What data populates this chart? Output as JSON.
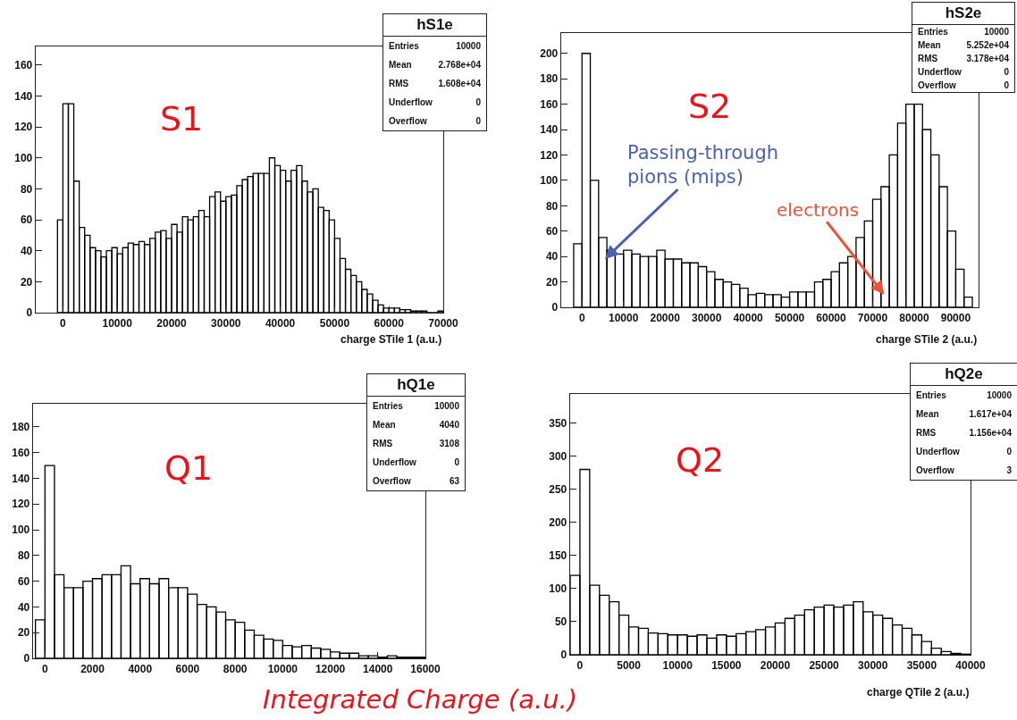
{
  "chart_data": [
    {
      "type": "histogram",
      "xlabel": "charge STile 1 (a.u.)",
      "color": "#000000",
      "xlim": [
        -5000,
        70000
      ],
      "xticks": [
        0,
        10000,
        20000,
        30000,
        40000,
        50000,
        60000,
        70000
      ],
      "ylim": [
        0,
        172
      ],
      "yticks": [
        0,
        20,
        40,
        60,
        80,
        100,
        120,
        140,
        160
      ],
      "grid": false,
      "legend": false,
      "bins": [
        -1000,
        0,
        1000,
        2000,
        3000,
        4000,
        5000,
        6000,
        7000,
        8000,
        9000,
        10000,
        11000,
        12000,
        13000,
        14000,
        15000,
        16000,
        17000,
        18000,
        19000,
        20000,
        21000,
        22000,
        23000,
        24000,
        25000,
        26000,
        27000,
        28000,
        29000,
        30000,
        31000,
        32000,
        33000,
        34000,
        35000,
        36000,
        37000,
        38000,
        39000,
        40000,
        41000,
        42000,
        43000,
        44000,
        45000,
        46000,
        47000,
        48000,
        49000,
        50000,
        51000,
        52000,
        53000,
        54000,
        55000,
        56000,
        57000,
        58000,
        59000,
        60000,
        61000,
        62000,
        63000,
        64000,
        65000,
        66000,
        67000,
        68000,
        69000,
        70000
      ],
      "values": [
        60,
        135,
        135,
        85,
        55,
        50,
        42,
        40,
        36,
        40,
        42,
        38,
        42,
        45,
        44,
        46,
        44,
        48,
        52,
        53,
        48,
        57,
        52,
        62,
        60,
        62,
        66,
        62,
        75,
        78,
        72,
        75,
        76,
        82,
        86,
        88,
        90,
        90,
        90,
        100,
        95,
        92,
        85,
        92,
        95,
        85,
        78,
        80,
        68,
        66,
        60,
        48,
        35,
        28,
        24,
        20,
        15,
        12,
        8,
        5,
        3,
        3,
        3,
        2,
        2,
        1,
        1,
        1,
        0,
        0,
        1
      ],
      "annotations": [
        "S1",
        "hS1e",
        "Entries",
        "10000",
        "Mean",
        "2.768e+04",
        "RMS",
        "1.608e+04",
        "Underflow",
        "0",
        "Overflow",
        "0"
      ]
    },
    {
      "type": "histogram",
      "xlabel": "charge STile 2 (a.u.)",
      "color": "#000000",
      "xlim": [
        -5000,
        95500
      ],
      "xticks": [
        0,
        10000,
        20000,
        30000,
        40000,
        50000,
        60000,
        70000,
        80000,
        90000
      ],
      "ylim": [
        0,
        216
      ],
      "yticks": [
        0,
        20,
        40,
        60,
        80,
        100,
        120,
        140,
        160,
        180,
        200
      ],
      "grid": false,
      "legend": false,
      "bins": [
        -2000,
        0,
        2000,
        4000,
        6000,
        8000,
        10000,
        12000,
        14000,
        16000,
        18000,
        20000,
        22000,
        24000,
        26000,
        28000,
        30000,
        32000,
        34000,
        36000,
        38000,
        40000,
        42000,
        44000,
        46000,
        48000,
        50000,
        52000,
        54000,
        56000,
        58000,
        60000,
        62000,
        64000,
        66000,
        68000,
        70000,
        72000,
        74000,
        76000,
        78000,
        80000,
        82000,
        84000,
        86000,
        88000,
        90000,
        92000,
        94000
      ],
      "values": [
        50,
        200,
        100,
        55,
        45,
        42,
        45,
        42,
        40,
        40,
        45,
        38,
        38,
        35,
        35,
        32,
        28,
        22,
        20,
        18,
        15,
        10,
        11,
        10,
        10,
        8,
        12,
        12,
        12,
        20,
        22,
        28,
        35,
        40,
        55,
        68,
        85,
        95,
        120,
        145,
        160,
        160,
        140,
        120,
        95,
        60,
        30,
        8
      ],
      "annotations": [
        "S2",
        "hS2e",
        "Entries",
        "10000",
        "Mean",
        "5.252e+04",
        "RMS",
        "3.178e+04",
        "Underflow",
        "0",
        "Overflow",
        "0",
        {
          "text": "Passing-through\npions (mips)",
          "x": 5500,
          "y": 38
        },
        {
          "text": "electrons",
          "x": 72800,
          "y": 10
        }
      ]
    },
    {
      "type": "histogram",
      "color": "#000000",
      "xlim": [
        -500,
        16000
      ],
      "xticks": [
        0,
        2000,
        4000,
        6000,
        8000,
        10000,
        12000,
        14000,
        16000
      ],
      "ylim": [
        0,
        198
      ],
      "yticks": [
        0,
        20,
        40,
        60,
        80,
        100,
        120,
        140,
        160,
        180
      ],
      "grid": false,
      "legend": false,
      "bins": [
        -400,
        0,
        400,
        800,
        1200,
        1600,
        2000,
        2400,
        2800,
        3200,
        3600,
        4000,
        4400,
        4800,
        5200,
        5600,
        6000,
        6400,
        6800,
        7200,
        7600,
        8000,
        8400,
        8800,
        9200,
        9600,
        10000,
        10400,
        10800,
        11200,
        11600,
        12000,
        12400,
        12800,
        13200,
        13600,
        14000,
        14400,
        14800,
        15200,
        15600,
        16000
      ],
      "values": [
        30,
        150,
        65,
        55,
        55,
        60,
        62,
        65,
        65,
        72,
        58,
        62,
        58,
        62,
        55,
        55,
        50,
        42,
        40,
        36,
        30,
        28,
        22,
        18,
        15,
        14,
        10,
        9,
        10,
        8,
        7,
        5,
        4,
        4,
        2,
        2,
        1,
        2,
        1,
        1,
        1
      ],
      "annotations": [
        "Q1",
        "hQ1e",
        "Entries",
        "10000",
        "Mean",
        "4040",
        "RMS",
        "3108",
        "Underflow",
        "0",
        "Overflow",
        "63",
        "Integrated Charge  (a.u.)"
      ]
    },
    {
      "type": "histogram",
      "xlabel": "charge QTile 2 (a.u.)",
      "color": "#000000",
      "xlim": [
        -1000,
        40000
      ],
      "xticks": [
        0,
        5000,
        10000,
        15000,
        20000,
        25000,
        30000,
        35000,
        40000
      ],
      "ylim": [
        0,
        394
      ],
      "yticks": [
        0,
        50,
        100,
        150,
        200,
        250,
        300,
        350
      ],
      "grid": false,
      "legend": false,
      "bins": [
        -1000,
        0,
        1000,
        2000,
        3000,
        4000,
        5000,
        6000,
        7000,
        8000,
        9000,
        10000,
        11000,
        12000,
        13000,
        14000,
        15000,
        16000,
        17000,
        18000,
        19000,
        20000,
        21000,
        22000,
        23000,
        24000,
        25000,
        26000,
        27000,
        28000,
        29000,
        30000,
        31000,
        32000,
        33000,
        34000,
        35000,
        36000,
        37000,
        38000,
        39000,
        40000
      ],
      "values": [
        120,
        280,
        105,
        90,
        80,
        60,
        42,
        40,
        33,
        32,
        30,
        30,
        28,
        30,
        25,
        30,
        28,
        32,
        35,
        38,
        42,
        48,
        55,
        60,
        68,
        72,
        75,
        72,
        75,
        80,
        65,
        60,
        55,
        45,
        40,
        30,
        20,
        10,
        5,
        2,
        1
      ],
      "annotations": [
        "Q2",
        "hQ2e",
        "Entries",
        "10000",
        "Mean",
        "1.617e+04",
        "RMS",
        "1.156e+04",
        "Underflow",
        "0",
        "Overflow",
        "3"
      ]
    }
  ]
}
